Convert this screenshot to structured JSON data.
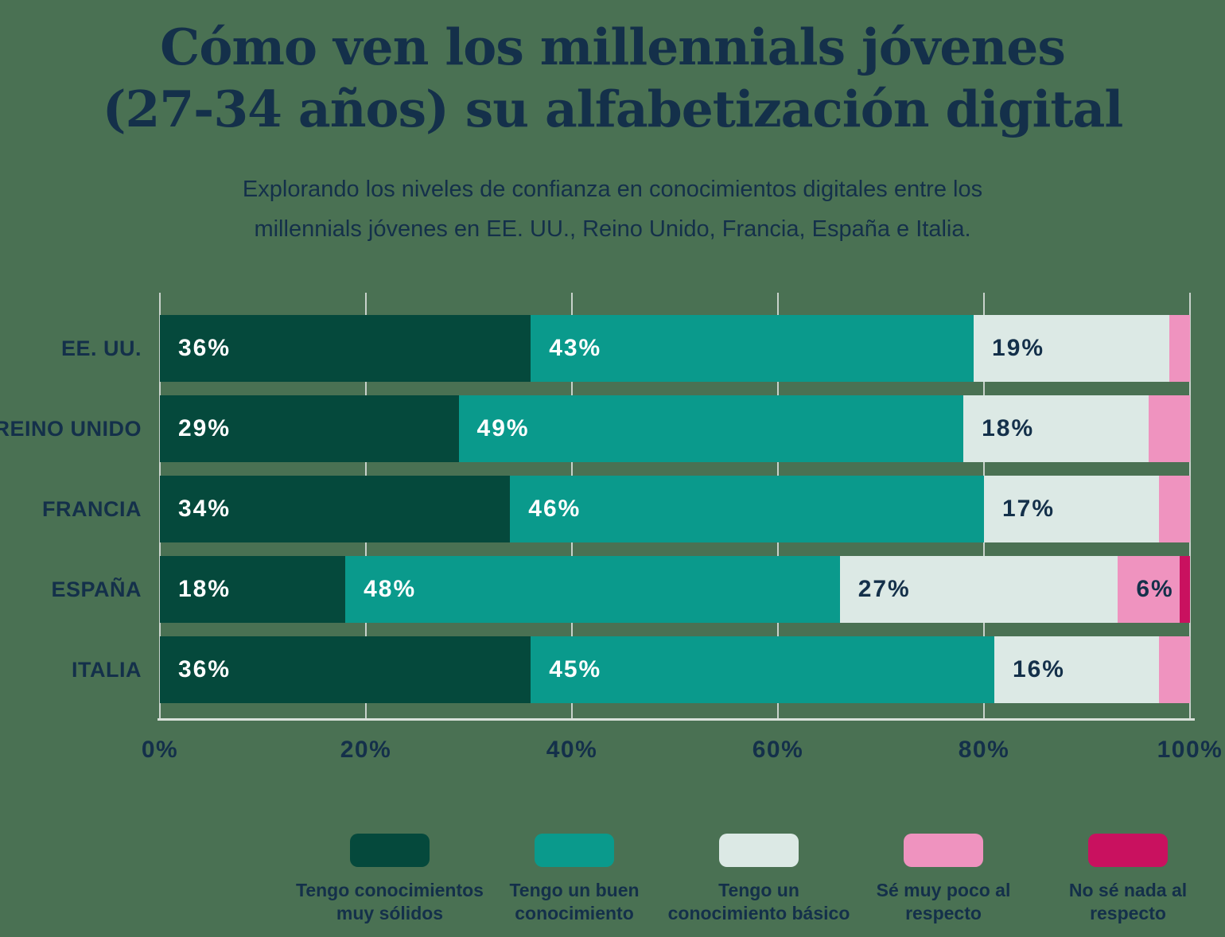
{
  "header": {
    "title_line1": "Cómo ven los millennials jóvenes",
    "title_line2": "(27-34 años) su alfabetización digital",
    "subtitle_line1": "Explorando los niveles de confianza en conocimientos digitales entre los",
    "subtitle_line2": "millennials jóvenes en EE. UU., Reino Unido, Francia, España e Italia."
  },
  "colors": {
    "background": "#4A7153",
    "text_navy": "#14304A",
    "gridline": "#C8D2CB",
    "baseline": "#D9E1DA"
  },
  "chart_data": {
    "type": "bar",
    "variant": "horizontal-stacked-100",
    "title": "Cómo ven los millennials jóvenes (27-34 años) su alfabetización digital",
    "subtitle": "Explorando los niveles de confianza en conocimientos digitales entre los millennials jóvenes en EE. UU., Reino Unido, Francia, España e Italia.",
    "categories": [
      "EE. UU.",
      "REINO UNIDO",
      "FRANCIA",
      "ESPAÑA",
      "ITALIA"
    ],
    "series": [
      {
        "name": "Tengo conocimientos muy sólidos",
        "color": "#05493C",
        "label_color": "#FFFFFF",
        "values": [
          36,
          29,
          34,
          18,
          36
        ]
      },
      {
        "name": "Tengo un buen conocimiento",
        "color": "#0A9A8C",
        "label_color": "#FFFFFF",
        "values": [
          43,
          49,
          46,
          48,
          45
        ]
      },
      {
        "name": "Tengo un conocimiento básico",
        "color": "#DCE9E5",
        "label_color": "#14304A",
        "values": [
          19,
          18,
          17,
          27,
          16
        ]
      },
      {
        "name": "Sé muy poco al respecto",
        "color": "#EF93BF",
        "label_color": "#14304A",
        "values": [
          2,
          4,
          3,
          6,
          3
        ]
      },
      {
        "name": "No sé nada al respecto",
        "color": "#C9115F",
        "label_color": "#14304A",
        "values": [
          0,
          0,
          0,
          1,
          0
        ]
      }
    ],
    "x_ticks": [
      "0%",
      "20%",
      "40%",
      "60%",
      "80%",
      "100%"
    ],
    "xlim": [
      0,
      100
    ],
    "value_label_min": 6,
    "grid": "vertical",
    "legend_position": "bottom"
  },
  "legend": {
    "items": [
      {
        "lines": [
          "Tengo conocimientos",
          "muy sólidos"
        ],
        "color": "#05493C"
      },
      {
        "lines": [
          "Tengo un buen",
          "conocimiento"
        ],
        "color": "#0A9A8C"
      },
      {
        "lines": [
          "Tengo un",
          "conocimiento básico"
        ],
        "color": "#DCE9E5"
      },
      {
        "lines": [
          "Sé muy poco al",
          "respecto"
        ],
        "color": "#EF93BF"
      },
      {
        "lines": [
          "No sé nada al",
          "respecto"
        ],
        "color": "#C9115F"
      }
    ]
  }
}
